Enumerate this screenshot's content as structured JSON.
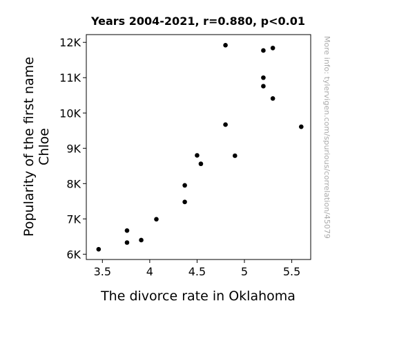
{
  "chart_data": {
    "type": "scatter",
    "title": "Years 2004-2021, r=0.880, p<0.01",
    "xlabel": "The divorce rate in Oklahoma",
    "ylabel_lines": [
      "Popularity of the first name",
      "Chloe"
    ],
    "watermark": "More info: tylervigen.com/spurious/correlation/45079",
    "xlim": [
      3.33,
      5.7
    ],
    "ylim": [
      5850,
      12220
    ],
    "x_ticks": [
      3.5,
      4,
      4.5,
      5,
      5.5
    ],
    "x_tick_labels": [
      "3.5",
      "4",
      "4.5",
      "5",
      "5.5"
    ],
    "y_ticks": [
      6000,
      7000,
      8000,
      9000,
      10000,
      11000,
      12000
    ],
    "y_tick_labels": [
      "6K",
      "7K",
      "8K",
      "9K",
      "10K",
      "11K",
      "12K"
    ],
    "grid": false,
    "marker_color": "#000000",
    "points": [
      {
        "x": 3.46,
        "y": 6140
      },
      {
        "x": 3.76,
        "y": 6670
      },
      {
        "x": 3.76,
        "y": 6330
      },
      {
        "x": 3.91,
        "y": 6400
      },
      {
        "x": 4.07,
        "y": 6990
      },
      {
        "x": 4.37,
        "y": 7950
      },
      {
        "x": 4.37,
        "y": 7480
      },
      {
        "x": 4.5,
        "y": 8800
      },
      {
        "x": 4.54,
        "y": 8560
      },
      {
        "x": 4.8,
        "y": 11920
      },
      {
        "x": 4.8,
        "y": 9670
      },
      {
        "x": 4.9,
        "y": 8790
      },
      {
        "x": 5.2,
        "y": 11770
      },
      {
        "x": 5.2,
        "y": 11000
      },
      {
        "x": 5.2,
        "y": 10760
      },
      {
        "x": 5.3,
        "y": 11840
      },
      {
        "x": 5.3,
        "y": 10410
      },
      {
        "x": 5.6,
        "y": 9610
      }
    ]
  }
}
